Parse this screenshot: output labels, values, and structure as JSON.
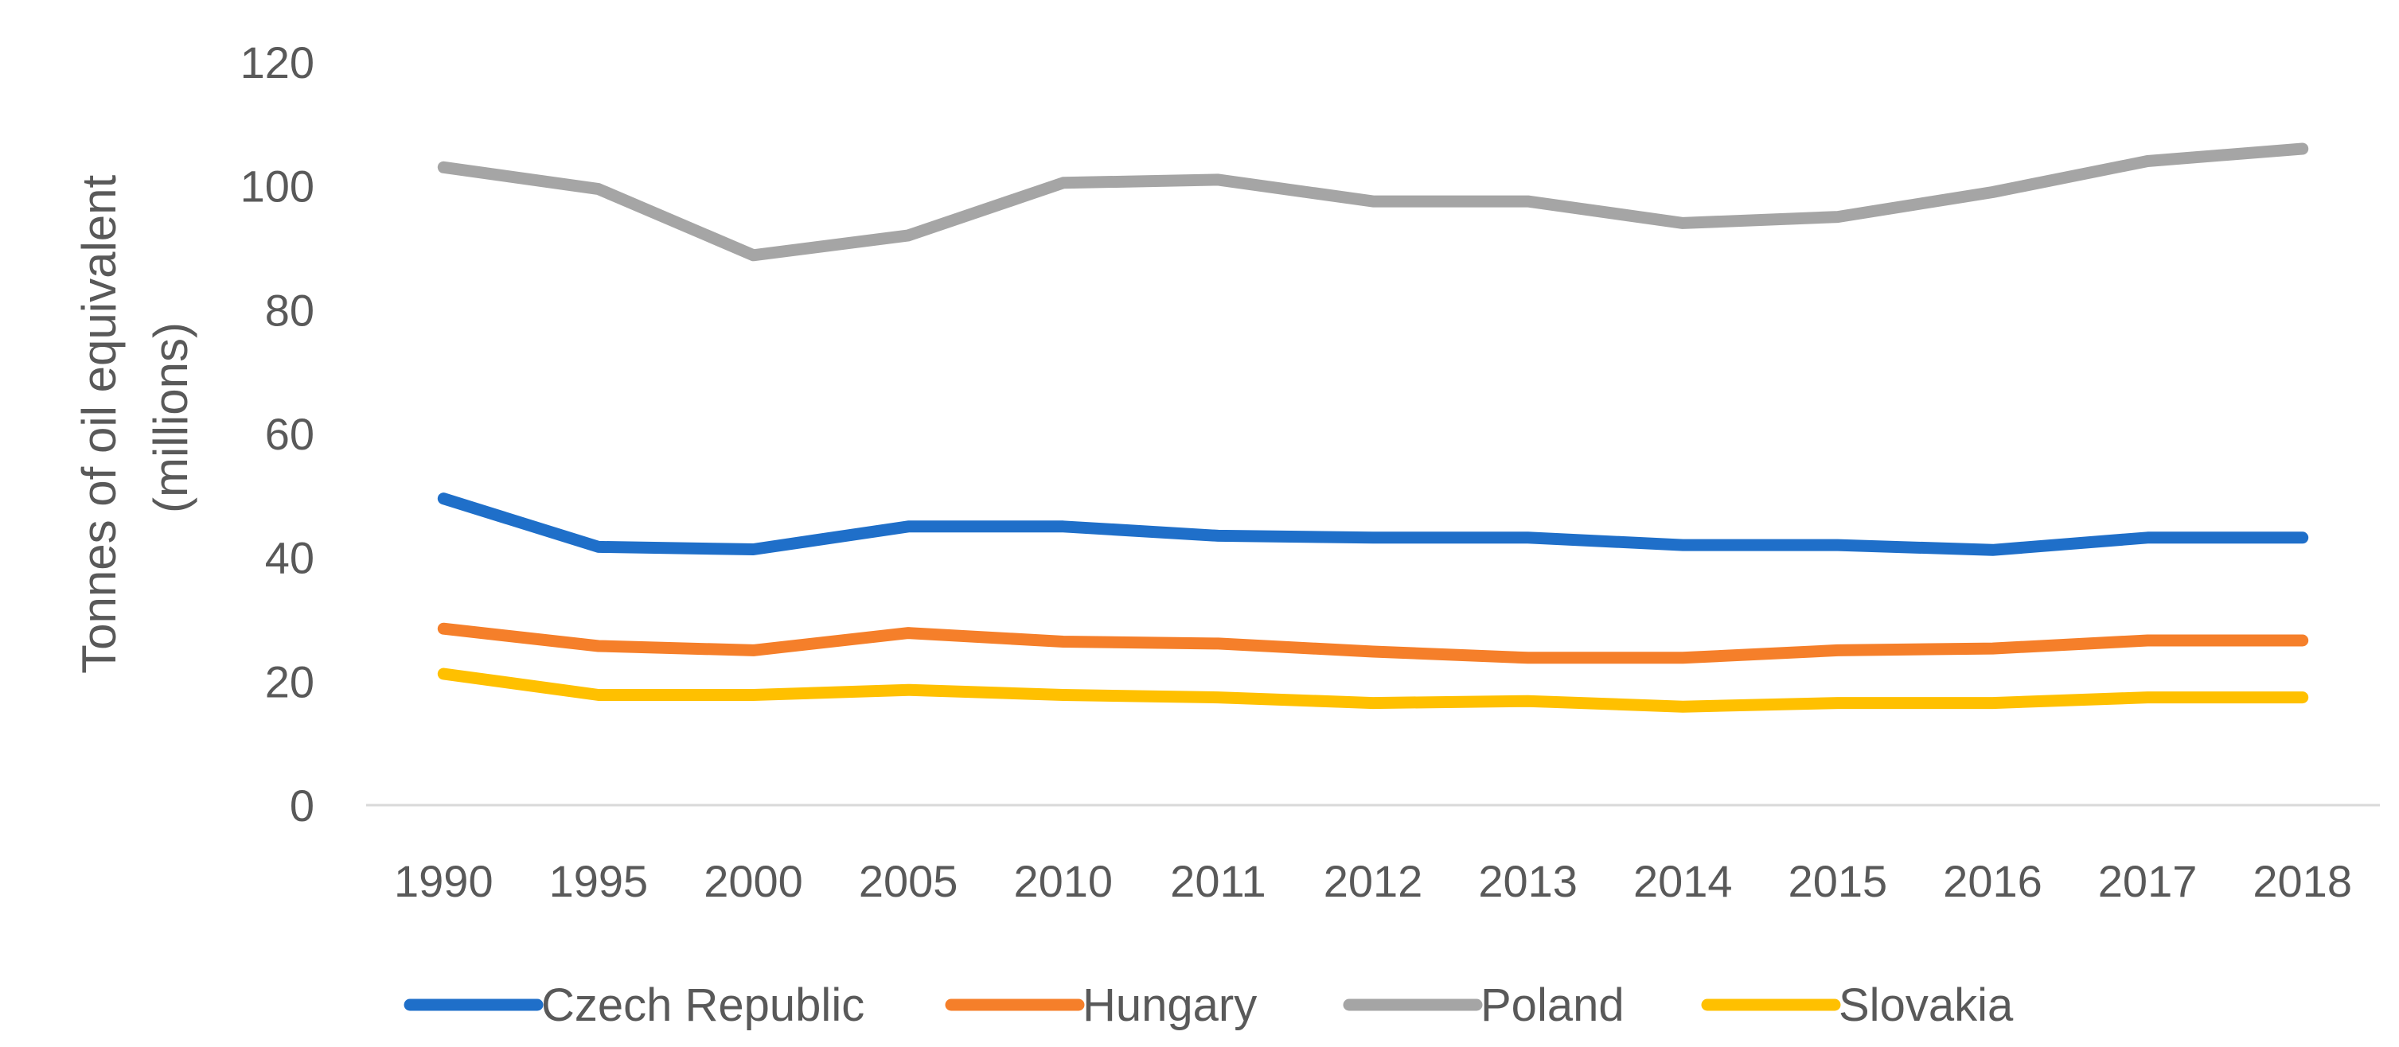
{
  "chart_data": {
    "type": "line",
    "title": "",
    "ylabel": "Tonnes of oil equivalent (millions)",
    "ylabel_lines": [
      "Tonnes of oil equivalent",
      "(millions)"
    ],
    "xlabel": "",
    "categories": [
      "1990",
      "1995",
      "2000",
      "2005",
      "2010",
      "2011",
      "2012",
      "2013",
      "2014",
      "2015",
      "2016",
      "2017",
      "2018"
    ],
    "ylim": [
      0,
      120
    ],
    "yticks": [
      0,
      20,
      40,
      60,
      80,
      100,
      120
    ],
    "grid": false,
    "legend_position": "bottom",
    "series": [
      {
        "name": "Czech Republic",
        "color": "#1F6FC9",
        "values": [
          49.5,
          41.7,
          41.3,
          45.0,
          45.0,
          43.5,
          43.2,
          43.2,
          42.0,
          42.0,
          41.2,
          43.2,
          43.2
        ]
      },
      {
        "name": "Hungary",
        "color": "#F57F2A",
        "values": [
          28.5,
          25.7,
          25.0,
          27.8,
          26.4,
          26.1,
          24.8,
          23.8,
          23.8,
          25.0,
          25.3,
          26.6,
          26.6
        ]
      },
      {
        "name": "Poland",
        "color": "#A5A5A5",
        "values": [
          103.0,
          99.5,
          88.8,
          92.0,
          100.5,
          101.0,
          97.5,
          97.5,
          94.0,
          95.0,
          99.0,
          104.0,
          106.0
        ]
      },
      {
        "name": "Slovakia",
        "color": "#FFC000",
        "values": [
          21.2,
          17.8,
          17.8,
          18.6,
          17.8,
          17.4,
          16.5,
          16.8,
          15.9,
          16.5,
          16.5,
          17.4,
          17.4
        ]
      }
    ]
  }
}
